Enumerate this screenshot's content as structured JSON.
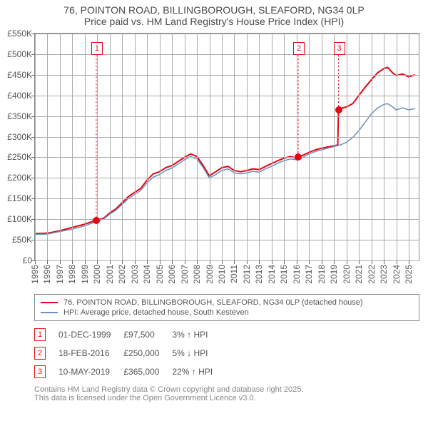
{
  "title": {
    "line1": "76, POINTON ROAD, BILLINGBOROUGH, SLEAFORD, NG34 0LP",
    "line2": "Price paid vs. HM Land Registry's House Price Index (HPI)",
    "fontsize": 14
  },
  "chart": {
    "type": "line",
    "background_color": "#ffffff",
    "grid_color": "#aaaaaa",
    "axis_color": "#888888",
    "xlim": [
      1995,
      2025.8
    ],
    "ylim": [
      0,
      550
    ],
    "yticks": [
      0,
      50,
      100,
      150,
      200,
      250,
      300,
      350,
      400,
      450,
      500,
      550
    ],
    "ytick_labels": [
      "£0",
      "£50K",
      "£100K",
      "£150K",
      "£200K",
      "£250K",
      "£300K",
      "£350K",
      "£400K",
      "£450K",
      "£500K",
      "£550K"
    ],
    "xticks": [
      1995,
      1996,
      1997,
      1998,
      1999,
      2000,
      2001,
      2002,
      2003,
      2004,
      2005,
      2006,
      2007,
      2008,
      2009,
      2010,
      2011,
      2012,
      2013,
      2014,
      2015,
      2016,
      2017,
      2018,
      2019,
      2020,
      2021,
      2022,
      2023,
      2024,
      2025
    ],
    "xtick_labels": [
      "1995",
      "1996",
      "1997",
      "1998",
      "1999",
      "2000",
      "2001",
      "2002",
      "2003",
      "2004",
      "2005",
      "2006",
      "2007",
      "2008",
      "2009",
      "2010",
      "2011",
      "2012",
      "2013",
      "2014",
      "2015",
      "2016",
      "2017",
      "2018",
      "2019",
      "2020",
      "2021",
      "2022",
      "2023",
      "2024",
      "2025"
    ],
    "tick_fontsize": 12,
    "series": [
      {
        "name": "price_paid",
        "label": "76, POINTON ROAD, BILLINGBOROUGH, SLEAFORD, NG34 0LP (detached house)",
        "color": "#e30613",
        "line_width": 2,
        "data": [
          [
            1995,
            65
          ],
          [
            1996,
            66
          ],
          [
            1997,
            72
          ],
          [
            1998,
            80
          ],
          [
            1999,
            88
          ],
          [
            1999.92,
            97.5
          ],
          [
            2000.5,
            102
          ],
          [
            2001,
            115
          ],
          [
            2001.5,
            125
          ],
          [
            2002,
            140
          ],
          [
            2002.5,
            155
          ],
          [
            2003,
            165
          ],
          [
            2003.5,
            175
          ],
          [
            2004,
            195
          ],
          [
            2004.5,
            210
          ],
          [
            2005,
            215
          ],
          [
            2005.5,
            225
          ],
          [
            2006,
            230
          ],
          [
            2006.5,
            240
          ],
          [
            2007,
            250
          ],
          [
            2007.5,
            258
          ],
          [
            2008,
            252
          ],
          [
            2008.5,
            230
          ],
          [
            2009,
            205
          ],
          [
            2009.5,
            215
          ],
          [
            2010,
            225
          ],
          [
            2010.5,
            228
          ],
          [
            2011,
            218
          ],
          [
            2011.5,
            215
          ],
          [
            2012,
            218
          ],
          [
            2012.5,
            222
          ],
          [
            2013,
            220
          ],
          [
            2013.5,
            228
          ],
          [
            2014,
            235
          ],
          [
            2014.5,
            242
          ],
          [
            2015,
            248
          ],
          [
            2015.5,
            252
          ],
          [
            2016,
            248
          ],
          [
            2016.13,
            250
          ],
          [
            2016.5,
            255
          ],
          [
            2017,
            262
          ],
          [
            2017.5,
            268
          ],
          [
            2018,
            272
          ],
          [
            2018.5,
            275
          ],
          [
            2019,
            278
          ],
          [
            2019.3,
            280
          ],
          [
            2019.36,
            365
          ],
          [
            2019.7,
            370
          ],
          [
            2020,
            372
          ],
          [
            2020.5,
            380
          ],
          [
            2021,
            400
          ],
          [
            2021.5,
            420
          ],
          [
            2022,
            438
          ],
          [
            2022.5,
            455
          ],
          [
            2023,
            465
          ],
          [
            2023.3,
            468
          ],
          [
            2023.7,
            455
          ],
          [
            2024,
            448
          ],
          [
            2024.5,
            452
          ],
          [
            2025,
            445
          ],
          [
            2025.5,
            450
          ]
        ]
      },
      {
        "name": "hpi",
        "label": "HPI: Average price, detached house, South Kesteven",
        "color": "#6a8fc5",
        "line_width": 1.5,
        "data": [
          [
            1995,
            63
          ],
          [
            1996,
            64
          ],
          [
            1997,
            70
          ],
          [
            1998,
            76
          ],
          [
            1999,
            84
          ],
          [
            2000,
            95
          ],
          [
            2000.5,
            100
          ],
          [
            2001,
            112
          ],
          [
            2001.5,
            122
          ],
          [
            2002,
            136
          ],
          [
            2002.5,
            150
          ],
          [
            2003,
            160
          ],
          [
            2003.5,
            170
          ],
          [
            2004,
            188
          ],
          [
            2004.5,
            202
          ],
          [
            2005,
            208
          ],
          [
            2005.5,
            218
          ],
          [
            2006,
            224
          ],
          [
            2006.5,
            234
          ],
          [
            2007,
            244
          ],
          [
            2007.5,
            252
          ],
          [
            2008,
            246
          ],
          [
            2008.5,
            225
          ],
          [
            2009,
            200
          ],
          [
            2009.5,
            208
          ],
          [
            2010,
            218
          ],
          [
            2010.5,
            222
          ],
          [
            2011,
            212
          ],
          [
            2011.5,
            210
          ],
          [
            2012,
            212
          ],
          [
            2012.5,
            216
          ],
          [
            2013,
            214
          ],
          [
            2013.5,
            222
          ],
          [
            2014,
            228
          ],
          [
            2014.5,
            236
          ],
          [
            2015,
            242
          ],
          [
            2015.5,
            246
          ],
          [
            2016,
            244
          ],
          [
            2016.5,
            250
          ],
          [
            2017,
            258
          ],
          [
            2017.5,
            264
          ],
          [
            2018,
            268
          ],
          [
            2018.5,
            272
          ],
          [
            2019,
            276
          ],
          [
            2019.5,
            280
          ],
          [
            2020,
            286
          ],
          [
            2020.5,
            298
          ],
          [
            2021,
            315
          ],
          [
            2021.5,
            335
          ],
          [
            2022,
            355
          ],
          [
            2022.5,
            370
          ],
          [
            2023,
            378
          ],
          [
            2023.3,
            380
          ],
          [
            2023.7,
            372
          ],
          [
            2024,
            365
          ],
          [
            2024.5,
            370
          ],
          [
            2025,
            365
          ],
          [
            2025.5,
            368
          ]
        ]
      }
    ],
    "markers": [
      {
        "n": "1",
        "x": 1999.92,
        "y": 97.5,
        "color": "#e30613",
        "border": "#e30613",
        "box_y": 515
      },
      {
        "n": "2",
        "x": 2016.13,
        "y": 250,
        "color": "#e30613",
        "border": "#e30613",
        "box_y": 515
      },
      {
        "n": "3",
        "x": 2019.36,
        "y": 365,
        "color": "#e30613",
        "border": "#e30613",
        "box_y": 515
      }
    ]
  },
  "legend": {
    "items": [
      {
        "color": "#e30613",
        "label": "76, POINTON ROAD, BILLINGBOROUGH, SLEAFORD, NG34 0LP (detached house)"
      },
      {
        "color": "#6a8fc5",
        "label": "HPI: Average price, detached house, South Kesteven"
      }
    ]
  },
  "events": [
    {
      "n": "1",
      "date": "01-DEC-1999",
      "price": "£97,500",
      "delta": "3% ↑ HPI"
    },
    {
      "n": "2",
      "date": "18-FEB-2016",
      "price": "£250,000",
      "delta": "5% ↓ HPI"
    },
    {
      "n": "3",
      "date": "10-MAY-2019",
      "price": "£365,000",
      "delta": "22% ↑ HPI"
    }
  ],
  "footer": {
    "line1": "Contains HM Land Registry data © Crown copyright and database right 2025.",
    "line2": "This data is licensed under the Open Government Licence v3.0."
  }
}
